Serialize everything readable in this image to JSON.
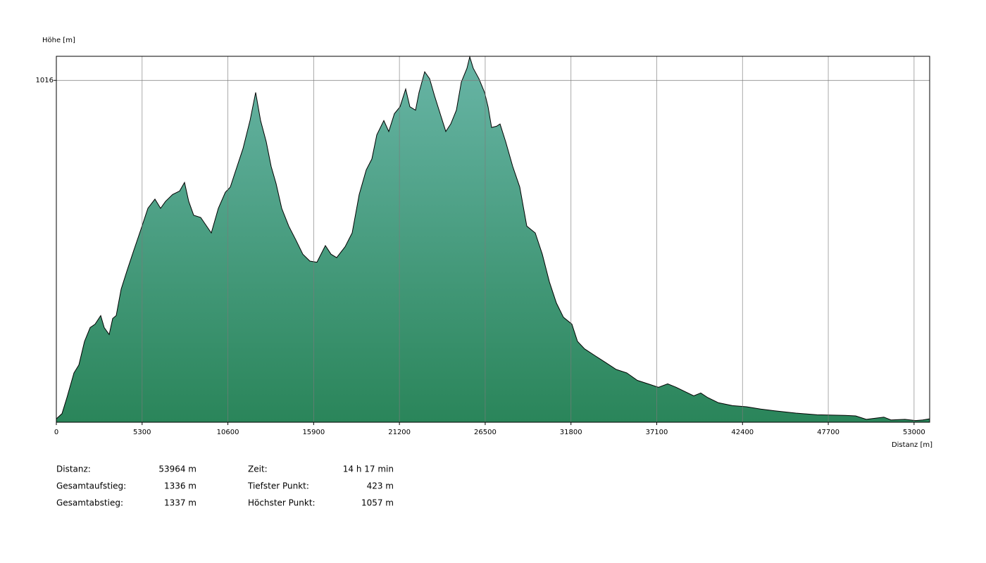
{
  "chart_data": {
    "type": "area",
    "y_label": "Höhe [m]",
    "x_label": "Distanz [m]",
    "xlim": [
      0,
      53964
    ],
    "ylim": [
      420,
      1058
    ],
    "xticks": [
      0,
      5300,
      10600,
      15900,
      21200,
      26500,
      31800,
      37100,
      42400,
      47700,
      53000
    ],
    "yticks": [
      1016
    ],
    "grid": true,
    "color_top": "#68b5a6",
    "color_bottom": "#2a855a",
    "line_color": "#000000",
    "x": [
      0,
      348,
      653,
      1088,
      1393,
      1741,
      2089,
      2394,
      2742,
      2959,
      3264,
      3482,
      3699,
      4004,
      4352,
      4787,
      5222,
      5658,
      6093,
      6441,
      6746,
      7181,
      7616,
      7921,
      8182,
      8486,
      8922,
      9574,
      10010,
      10445,
      10749,
      11098,
      11533,
      11968,
      12316,
      12621,
      12969,
      13274,
      13578,
      13926,
      14362,
      14797,
      15232,
      15667,
      16102,
      16625,
      16973,
      17321,
      17843,
      18278,
      18714,
      19149,
      19497,
      19802,
      20237,
      20541,
      20890,
      21238,
      21586,
      21847,
      22195,
      22413,
      22761,
      23066,
      23370,
      23718,
      24067,
      24371,
      24719,
      25024,
      25372,
      25546,
      25764,
      26112,
      26460,
      26678,
      26895,
      27200,
      27418,
      27766,
      28201,
      28636,
      29071,
      29594,
      30029,
      30464,
      30899,
      31334,
      31857,
      32205,
      32640,
      33293,
      33946,
      34598,
      35251,
      35904,
      36557,
      37210,
      37775,
      38298,
      38733,
      39386,
      39821,
      40256,
      40909,
      41779,
      42650,
      43520,
      44390,
      45696,
      47002,
      48742,
      49395,
      50048,
      51136,
      51571,
      52442,
      53094,
      53530,
      53964
    ],
    "values": [
      426,
      435,
      463,
      506,
      520,
      561,
      585,
      591,
      606,
      585,
      573,
      601,
      606,
      652,
      683,
      720,
      756,
      793,
      809,
      793,
      805,
      817,
      823,
      838,
      805,
      781,
      777,
      750,
      793,
      821,
      830,
      860,
      897,
      946,
      995,
      946,
      909,
      866,
      836,
      793,
      762,
      738,
      713,
      701,
      699,
      728,
      713,
      707,
      726,
      750,
      817,
      860,
      879,
      921,
      946,
      927,
      958,
      970,
      1001,
      970,
      964,
      995,
      1031,
      1019,
      989,
      958,
      927,
      940,
      964,
      1013,
      1037,
      1057,
      1037,
      1019,
      995,
      970,
      934,
      936,
      940,
      909,
      866,
      830,
      762,
      750,
      713,
      665,
      628,
      603,
      591,
      561,
      548,
      536,
      524,
      512,
      506,
      493,
      487,
      481,
      487,
      481,
      475,
      466,
      471,
      463,
      454,
      449,
      447,
      443,
      440,
      436,
      433,
      432,
      431,
      425,
      429,
      424,
      425,
      423,
      424,
      426
    ]
  },
  "stats": [
    {
      "label": "Distanz:",
      "value": "53964 m"
    },
    {
      "label": "Gesamtaufstieg:",
      "value": "1336 m"
    },
    {
      "label": "Gesamtabstieg:",
      "value": "1337 m"
    },
    {
      "label": "Zeit:",
      "value": "14 h 17 min"
    },
    {
      "label": "Tiefster Punkt:",
      "value": "423 m"
    },
    {
      "label": "Höchster Punkt:",
      "value": "1057 m"
    }
  ]
}
